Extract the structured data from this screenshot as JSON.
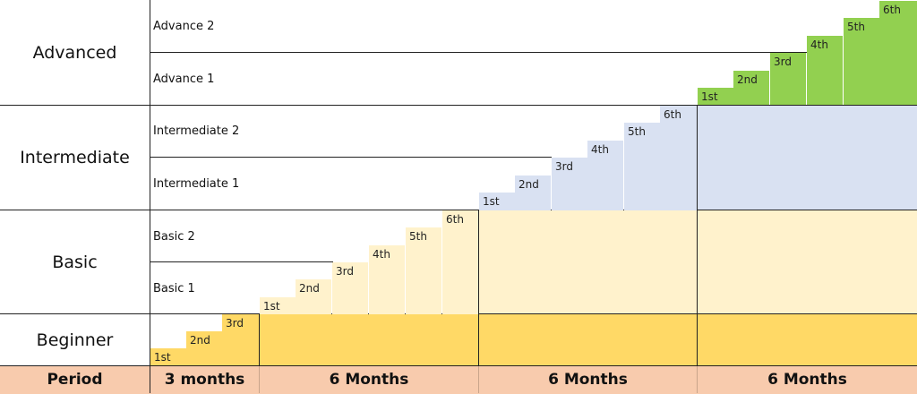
{
  "colors": {
    "beginner": "#ffd966",
    "basic": "#fff2cc",
    "intermediate": "#d9e1f2",
    "advanced": "#92d050",
    "footer": "#f8cbad",
    "line": "#222222"
  },
  "levels": {
    "advanced": "Advanced",
    "intermediate": "Intermediate",
    "basic": "Basic",
    "beginner": "Beginner"
  },
  "sublevels": {
    "advance_2": "Advance 2",
    "advance_1": "Advance 1",
    "intermediate_2": "Intermediate 2",
    "intermediate_1": "Intermediate 1",
    "basic_2": "Basic 2",
    "basic_1": "Basic 1"
  },
  "steps": {
    "beginner": [
      "1st",
      "2nd",
      "3rd"
    ],
    "basic": [
      "1st",
      "2nd",
      "3rd",
      "4th",
      "5th",
      "6th"
    ],
    "intermediate": [
      "1st",
      "2nd",
      "3rd",
      "4th",
      "5th",
      "6th"
    ],
    "advanced": [
      "1st",
      "2nd",
      "3rd",
      "4th",
      "5th",
      "6th"
    ]
  },
  "footer": {
    "period_label": "Period",
    "col1": "3 months",
    "col2": "6 Months",
    "col3": "6 Months",
    "col4": "6 Months"
  }
}
